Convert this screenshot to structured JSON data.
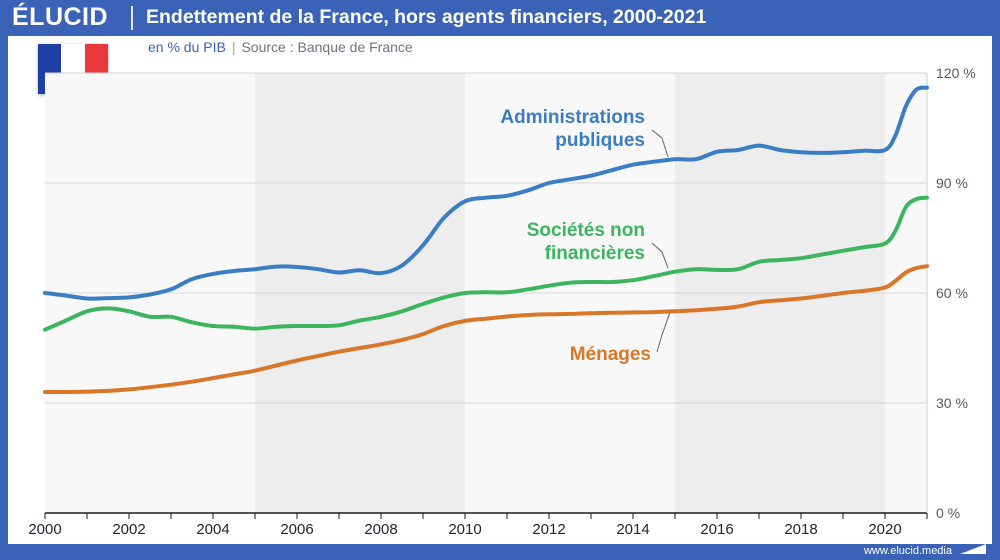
{
  "brand": {
    "logo": "ÉLUCID",
    "url": "www.elucid.media"
  },
  "header": {
    "title": "Endettement de la France, hors agents financiers, 2000-2021"
  },
  "subtitle": {
    "unit": "en % du PIB",
    "separator": "|",
    "source": "Source : Banque de France"
  },
  "flag": {
    "colors": [
      "#1f3fa4",
      "#ffffff",
      "#e8383d"
    ],
    "icon": "france-flag-icon"
  },
  "chart_data": {
    "type": "line",
    "xlim": [
      2000,
      2021
    ],
    "ylim": [
      0,
      120
    ],
    "x_ticks": [
      "2000",
      "2002",
      "2004",
      "2006",
      "2008",
      "2010",
      "2012",
      "2014",
      "2016",
      "2018",
      "2020"
    ],
    "y_ticks": [
      "0 %",
      "30 %",
      "60 %",
      "90 %",
      "120 %"
    ],
    "grid": true,
    "shaded_bands": [
      [
        2005,
        2010
      ],
      [
        2015,
        2020
      ]
    ],
    "series": [
      {
        "name": "Administrations publiques",
        "label_lines": [
          "Administrations",
          "publiques"
        ],
        "color": "#3b7dc4",
        "x": [
          2000,
          2000.5,
          2001,
          2001.5,
          2002,
          2002.5,
          2003,
          2003.5,
          2004,
          2004.5,
          2005,
          2005.5,
          2006,
          2006.5,
          2007,
          2007.5,
          2008,
          2008.5,
          2009,
          2009.5,
          2010,
          2010.5,
          2011,
          2011.5,
          2012,
          2012.5,
          2013,
          2013.5,
          2014,
          2014.5,
          2015,
          2015.5,
          2016,
          2016.5,
          2017,
          2017.5,
          2018,
          2018.5,
          2019,
          2019.5,
          2020,
          2020.25,
          2020.5,
          2020.75,
          2021
        ],
        "y": [
          60,
          59.3,
          58.5,
          58.6,
          58.8,
          59.6,
          61.0,
          63.8,
          65.2,
          66.0,
          66.5,
          67.2,
          67.1,
          66.5,
          65.6,
          66.2,
          65.4,
          67.5,
          73.0,
          80.5,
          85.0,
          86.0,
          86.5,
          88.0,
          90.0,
          91.0,
          92.0,
          93.5,
          95.0,
          95.8,
          96.5,
          96.5,
          98.5,
          99.0,
          100.2,
          99.0,
          98.4,
          98.2,
          98.4,
          98.8,
          99.0,
          103.0,
          111.0,
          115.5,
          116.0
        ]
      },
      {
        "name": "Sociétés non financières",
        "label_lines": [
          "Sociétés non",
          "financières"
        ],
        "color": "#3db55e",
        "x": [
          2000,
          2000.5,
          2001,
          2001.5,
          2002,
          2002.5,
          2003,
          2003.5,
          2004,
          2004.5,
          2005,
          2005.5,
          2006,
          2006.5,
          2007,
          2007.5,
          2008,
          2008.5,
          2009,
          2009.5,
          2010,
          2010.5,
          2011,
          2011.5,
          2012,
          2012.5,
          2013,
          2013.5,
          2014,
          2014.5,
          2015,
          2015.5,
          2016,
          2016.5,
          2017,
          2017.5,
          2018,
          2018.5,
          2019,
          2019.5,
          2020,
          2020.25,
          2020.5,
          2020.75,
          2021
        ],
        "y": [
          50,
          52.5,
          55.0,
          55.8,
          55.0,
          53.5,
          53.5,
          52.0,
          51.0,
          50.8,
          50.3,
          50.8,
          51.0,
          51.0,
          51.2,
          52.5,
          53.5,
          55.0,
          57.0,
          58.8,
          60.0,
          60.2,
          60.2,
          61.0,
          62.0,
          62.8,
          63.0,
          63.0,
          63.5,
          64.6,
          65.8,
          66.5,
          66.3,
          66.5,
          68.5,
          69.0,
          69.5,
          70.5,
          71.5,
          72.5,
          73.5,
          77.0,
          83.5,
          85.6,
          86.0
        ]
      },
      {
        "name": "Ménages",
        "label_lines": [
          "Ménages"
        ],
        "color": "#d9762a",
        "x": [
          2000,
          2000.5,
          2001,
          2001.5,
          2002,
          2002.5,
          2003,
          2003.5,
          2004,
          2004.5,
          2005,
          2005.5,
          2006,
          2006.5,
          2007,
          2007.5,
          2008,
          2008.5,
          2009,
          2009.5,
          2010,
          2010.5,
          2011,
          2011.5,
          2012,
          2012.5,
          2013,
          2013.5,
          2014,
          2014.5,
          2015,
          2015.5,
          2016,
          2016.5,
          2017,
          2017.5,
          2018,
          2018.5,
          2019,
          2019.5,
          2020,
          2020.25,
          2020.5,
          2020.75,
          2021
        ],
        "y": [
          33.0,
          33.0,
          33.1,
          33.3,
          33.7,
          34.3,
          35.0,
          35.8,
          36.8,
          37.8,
          38.8,
          40.2,
          41.6,
          42.8,
          44.0,
          45.0,
          46.0,
          47.2,
          48.8,
          51.0,
          52.4,
          53.0,
          53.6,
          54.0,
          54.2,
          54.3,
          54.5,
          54.6,
          54.7,
          54.8,
          55.0,
          55.3,
          55.7,
          56.3,
          57.5,
          58.0,
          58.5,
          59.2,
          60.0,
          60.6,
          61.5,
          63.3,
          65.6,
          66.8,
          67.3
        ]
      }
    ]
  }
}
